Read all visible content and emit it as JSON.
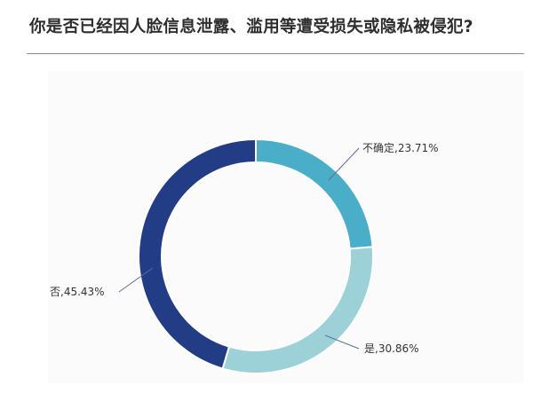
{
  "title": "你是否已经因人脸信息泄露、滥用等遭受损失或隐私被侵犯?",
  "chart_data": {
    "type": "pie",
    "donut": true,
    "start_angle_deg": 0,
    "direction": "clockwise",
    "slices": [
      {
        "name": "不确定",
        "value": 23.71,
        "label": "不确定,23.71%",
        "color": "#4aaec9"
      },
      {
        "name": "是",
        "value": 30.86,
        "label": "是,30.86%",
        "color": "#9dd1d8"
      },
      {
        "name": "否",
        "value": 45.43,
        "label": "否,45.43%",
        "color": "#233c86"
      }
    ],
    "legend": "none"
  }
}
